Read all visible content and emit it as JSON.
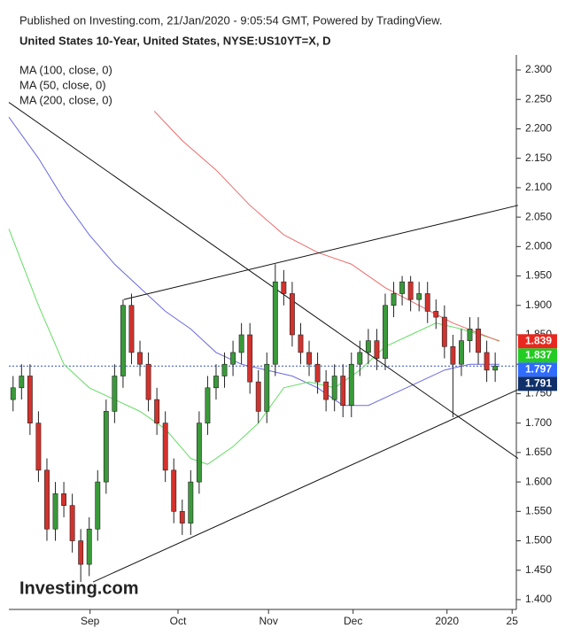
{
  "chart_data": {
    "type": "candlestick",
    "published": "Published on Investing.com, 21/Jan/2020 - 9:05:54 GMT, Powered by TradingView.",
    "title": "United States 10-Year, United States, NYSE:US10YT=X, D",
    "logo": "Investing.com",
    "up_color": "#3a9a3a",
    "down_color": "#d2322d",
    "open": [
      1.74,
      1.76,
      1.78,
      1.7,
      1.62,
      1.52,
      1.58,
      1.56,
      1.5,
      1.46,
      1.52,
      1.6,
      1.72,
      1.78,
      1.9,
      1.82,
      1.8,
      1.74,
      1.7,
      1.62,
      1.55,
      1.53,
      1.6,
      1.7,
      1.76,
      1.78,
      1.8,
      1.82,
      1.85,
      1.77,
      1.72,
      1.8,
      1.94,
      1.92,
      1.85,
      1.82,
      1.8,
      1.77,
      1.74,
      1.78,
      1.73,
      1.8,
      1.82,
      1.84,
      1.81,
      1.9,
      1.92,
      1.94,
      1.91,
      1.92,
      1.89,
      1.88,
      1.83,
      1.8,
      1.84,
      1.86,
      1.82,
      1.79
    ],
    "high": [
      1.78,
      1.8,
      1.8,
      1.72,
      1.64,
      1.6,
      1.6,
      1.58,
      1.52,
      1.54,
      1.62,
      1.74,
      1.8,
      1.91,
      1.92,
      1.84,
      1.82,
      1.76,
      1.72,
      1.64,
      1.57,
      1.62,
      1.72,
      1.78,
      1.8,
      1.82,
      1.84,
      1.87,
      1.87,
      1.79,
      1.82,
      1.97,
      1.96,
      1.94,
      1.87,
      1.84,
      1.82,
      1.79,
      1.8,
      1.8,
      1.82,
      1.84,
      1.86,
      1.86,
      1.92,
      1.94,
      1.95,
      1.95,
      1.94,
      1.94,
      1.91,
      1.9,
      1.85,
      1.86,
      1.88,
      1.88,
      1.84,
      1.82
    ],
    "low": [
      1.72,
      1.74,
      1.68,
      1.6,
      1.5,
      1.5,
      1.54,
      1.48,
      1.43,
      1.44,
      1.5,
      1.58,
      1.7,
      1.76,
      1.8,
      1.78,
      1.72,
      1.68,
      1.6,
      1.53,
      1.51,
      1.51,
      1.58,
      1.68,
      1.74,
      1.76,
      1.78,
      1.8,
      1.75,
      1.7,
      1.7,
      1.78,
      1.9,
      1.83,
      1.8,
      1.78,
      1.75,
      1.72,
      1.72,
      1.71,
      1.71,
      1.78,
      1.8,
      1.79,
      1.79,
      1.88,
      1.9,
      1.89,
      1.89,
      1.87,
      1.86,
      1.81,
      1.71,
      1.78,
      1.82,
      1.8,
      1.77,
      1.77
    ],
    "close": [
      1.76,
      1.78,
      1.7,
      1.62,
      1.52,
      1.58,
      1.56,
      1.5,
      1.46,
      1.52,
      1.6,
      1.72,
      1.78,
      1.9,
      1.82,
      1.8,
      1.74,
      1.7,
      1.62,
      1.55,
      1.53,
      1.6,
      1.7,
      1.76,
      1.78,
      1.8,
      1.82,
      1.85,
      1.77,
      1.72,
      1.8,
      1.94,
      1.92,
      1.85,
      1.82,
      1.8,
      1.77,
      1.74,
      1.78,
      1.73,
      1.8,
      1.82,
      1.84,
      1.81,
      1.9,
      1.92,
      1.94,
      1.91,
      1.92,
      1.89,
      1.88,
      1.83,
      1.8,
      1.84,
      1.86,
      1.82,
      1.79,
      1.797
    ],
    "series": [
      {
        "name": "MA (100, close, 0)",
        "color": "#6a6ae0",
        "x": [
          -0.5,
          3,
          6,
          9,
          12,
          15,
          18,
          21,
          24,
          27,
          30,
          33,
          36,
          39,
          42,
          45,
          48,
          51,
          54,
          57.5
        ],
        "values": [
          2.22,
          2.15,
          2.08,
          2.02,
          1.97,
          1.93,
          1.89,
          1.86,
          1.82,
          1.8,
          1.79,
          1.78,
          1.76,
          1.73,
          1.73,
          1.75,
          1.77,
          1.79,
          1.8,
          1.8
        ]
      },
      {
        "name": "MA (50, close, 0)",
        "color": "#66dd66",
        "x": [
          -0.5,
          3,
          6,
          9,
          12,
          15,
          18,
          21,
          23,
          26,
          29,
          32,
          35,
          38,
          41,
          44,
          47,
          50,
          53,
          57.5
        ],
        "values": [
          2.03,
          1.9,
          1.8,
          1.76,
          1.74,
          1.72,
          1.69,
          1.64,
          1.63,
          1.66,
          1.7,
          1.76,
          1.77,
          1.76,
          1.79,
          1.83,
          1.85,
          1.87,
          1.86,
          1.84
        ]
      },
      {
        "name": "MA (200, close, 0)",
        "color": "#ee6a6a",
        "x": [
          16.7,
          20,
          24,
          28,
          32,
          36,
          40,
          44,
          48,
          52,
          57.5
        ],
        "values": [
          2.23,
          2.18,
          2.13,
          2.07,
          2.02,
          1.99,
          1.97,
          1.93,
          1.9,
          1.87,
          1.839
        ]
      }
    ],
    "trendlines": [
      {
        "x": [
          -0.5,
          59.7
        ],
        "values": [
          2.245,
          1.64
        ]
      },
      {
        "x": [
          9.45,
          59.7
        ],
        "values": [
          1.43,
          1.757
        ]
      },
      {
        "x": [
          13.1,
          59.7
        ],
        "values": [
          1.91,
          2.07
        ]
      }
    ],
    "price_labels": [
      {
        "value": 1.839,
        "color": "#e8281e"
      },
      {
        "value": 1.837,
        "color": "#22cc22"
      },
      {
        "value": 1.797,
        "color": "#2f6bff"
      },
      {
        "value": 1.791,
        "color": "#10306a"
      }
    ],
    "last_price_line": 1.797,
    "xlim": [
      -0.5,
      59.5
    ],
    "xticks": [
      {
        "value": 9.1,
        "label": "Sep"
      },
      {
        "value": 19.5,
        "label": "Oct"
      },
      {
        "value": 30.2,
        "label": "Nov"
      },
      {
        "value": 40.2,
        "label": "Dec"
      },
      {
        "value": 51.3,
        "label": "2020"
      },
      {
        "value": 59,
        "label": "25"
      }
    ],
    "ylim": [
      1.3834,
      2.3256
    ],
    "yticks": [
      {
        "value": 1.4,
        "label": "1.400"
      },
      {
        "value": 1.45,
        "label": "1.450"
      },
      {
        "value": 1.5,
        "label": "1.500"
      },
      {
        "value": 1.55,
        "label": "1.550"
      },
      {
        "value": 1.6,
        "label": "1.600"
      },
      {
        "value": 1.65,
        "label": "1.650"
      },
      {
        "value": 1.7,
        "label": "1.700"
      },
      {
        "value": 1.75,
        "label": "1.750"
      },
      {
        "value": 1.8,
        "label": "1.800"
      },
      {
        "value": 1.85,
        "label": "1.850"
      },
      {
        "value": 1.9,
        "label": "1.900"
      },
      {
        "value": 1.95,
        "label": "1.950"
      },
      {
        "value": 2.0,
        "label": "2.000"
      },
      {
        "value": 2.05,
        "label": "2.050"
      },
      {
        "value": 2.1,
        "label": "2.100"
      },
      {
        "value": 2.15,
        "label": "2.150"
      },
      {
        "value": 2.2,
        "label": "2.200"
      },
      {
        "value": 2.25,
        "label": "2.250"
      },
      {
        "value": 2.3,
        "label": "2.300"
      }
    ]
  }
}
